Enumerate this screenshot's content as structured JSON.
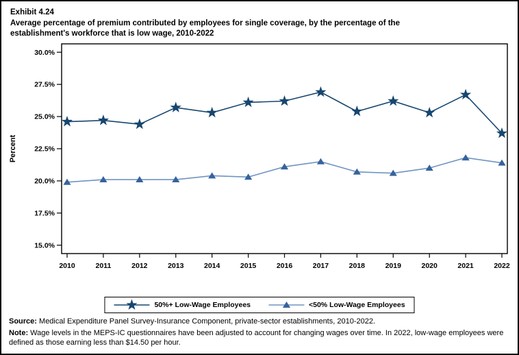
{
  "page": {
    "exhibit_label": "Exhibit 4.24",
    "title_line1": "Average percentage of premium contributed by employees for single coverage, by the percentage of the",
    "title_line2": "establishment's workforce that is low wage, 2010-2022"
  },
  "chart_data": {
    "type": "line",
    "x": [
      2010,
      2011,
      2012,
      2013,
      2014,
      2015,
      2016,
      2017,
      2018,
      2019,
      2020,
      2021,
      2022
    ],
    "series": [
      {
        "name": "50%+ Low-Wage Employees",
        "marker": "star",
        "marker_color": "#17466F",
        "line_color": "#17466F",
        "values": [
          24.6,
          24.7,
          24.4,
          25.7,
          25.3,
          26.1,
          26.2,
          26.9,
          25.4,
          26.2,
          25.3,
          26.7,
          23.7
        ]
      },
      {
        "name": "<50% Low-Wage Employees",
        "marker": "triangle",
        "marker_color": "#35639D",
        "line_color": "#7193C1",
        "values": [
          19.9,
          20.1,
          20.1,
          20.1,
          20.4,
          20.3,
          21.1,
          21.5,
          20.7,
          20.6,
          21.0,
          21.8,
          21.4
        ]
      }
    ],
    "ylabel": "Percent",
    "yticks": [
      30.0,
      27.5,
      25.0,
      22.5,
      20.0,
      17.5,
      15.0
    ],
    "ytick_suffix": "%",
    "ylim": [
      14.35,
      30.65
    ],
    "grid": false,
    "legend_position": "bottom-center",
    "frame_color": "#000000"
  },
  "footer": {
    "source_label": "Source:",
    "source_text": " Medical Expenditure Panel Survey-Insurance Component, private-sector establishments, 2010-2022.",
    "note_label": "Note:",
    "note_text": " Wage levels in the MEPS-IC questionnaires have been adjusted to account for changing wages over time.  In 2022, low-wage employees were defined as those earning less than $14.50 per hour."
  }
}
